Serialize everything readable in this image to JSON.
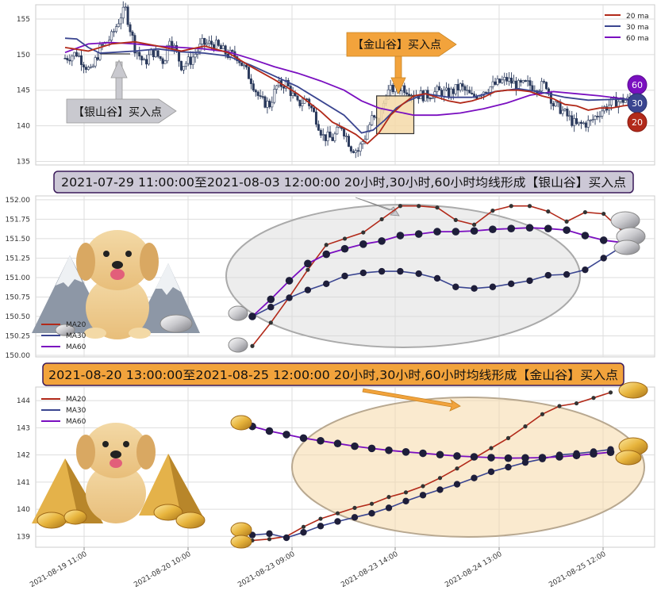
{
  "colors": {
    "ma20": "#b22a1a",
    "ma30": "#3a4590",
    "ma60": "#7a0fc0",
    "candle": "#2b3a5c",
    "silver_box": "#c9c9cf",
    "gold_box": "#f2a33c",
    "gold_fill": "#f5d9a8"
  },
  "chart_data": [
    {
      "type": "line",
      "name": "overview",
      "ylim": [
        134.5,
        157
      ],
      "yticks": [
        "135",
        "140",
        "145",
        "150",
        "155"
      ],
      "legend": [
        "20 ma",
        "30 ma",
        "60 ma"
      ],
      "badges": [
        "60",
        "30",
        "20"
      ],
      "annotations": {
        "silver": "【银山谷】买入点",
        "gold": "【金山谷】买入点"
      },
      "candle_anchors": [
        [
          0,
          149.5
        ],
        [
          10,
          150.2
        ],
        [
          22,
          147.5
        ],
        [
          30,
          150.8
        ],
        [
          40,
          152.5
        ],
        [
          48,
          155.5
        ],
        [
          52,
          156.3
        ],
        [
          60,
          151
        ],
        [
          68,
          148.7
        ],
        [
          75,
          150.5
        ],
        [
          85,
          149
        ],
        [
          90,
          152.5
        ],
        [
          100,
          148.5
        ],
        [
          108,
          149.2
        ],
        [
          118,
          151.5
        ],
        [
          128,
          151.5
        ],
        [
          140,
          150
        ],
        [
          148,
          149.8
        ],
        [
          160,
          146.5
        ],
        [
          168,
          143.5
        ],
        [
          176,
          143
        ],
        [
          182,
          145.5
        ],
        [
          190,
          146
        ],
        [
          200,
          143
        ],
        [
          208,
          143.8
        ],
        [
          216,
          141
        ],
        [
          222,
          138.5
        ],
        [
          230,
          138.2
        ],
        [
          238,
          140
        ],
        [
          246,
          137
        ],
        [
          252,
          136.5
        ],
        [
          258,
          138.5
        ],
        [
          264,
          141
        ],
        [
          270,
          140.5
        ],
        [
          276,
          144.5
        ],
        [
          282,
          145.2
        ],
        [
          290,
          145.5
        ],
        [
          300,
          144.5
        ],
        [
          310,
          144.2
        ],
        [
          320,
          144.8
        ],
        [
          330,
          144.5
        ],
        [
          340,
          145.5
        ],
        [
          350,
          144
        ],
        [
          360,
          145
        ],
        [
          370,
          145.8
        ],
        [
          380,
          146.5
        ],
        [
          390,
          145.6
        ],
        [
          398,
          145.8
        ],
        [
          406,
          145.4
        ],
        [
          414,
          145.8
        ],
        [
          420,
          143
        ],
        [
          426,
          142.4
        ],
        [
          434,
          141
        ],
        [
          440,
          140
        ],
        [
          446,
          140.3
        ],
        [
          452,
          140.5
        ],
        [
          460,
          142
        ],
        [
          470,
          143.2
        ],
        [
          480,
          143.6
        ],
        [
          490,
          143.6
        ]
      ],
      "ma20": [
        [
          0,
          151
        ],
        [
          20,
          150.5
        ],
        [
          40,
          151.5
        ],
        [
          60,
          151.8
        ],
        [
          80,
          151.2
        ],
        [
          100,
          150.5
        ],
        [
          120,
          151.2
        ],
        [
          140,
          150.3
        ],
        [
          160,
          148.3
        ],
        [
          180,
          146.5
        ],
        [
          200,
          144.5
        ],
        [
          220,
          142
        ],
        [
          230,
          140.5
        ],
        [
          240,
          139.7
        ],
        [
          250,
          138.8
        ],
        [
          260,
          137.5
        ],
        [
          270,
          139
        ],
        [
          280,
          141.5
        ],
        [
          290,
          143
        ],
        [
          300,
          144.2
        ],
        [
          310,
          144.5
        ],
        [
          320,
          144
        ],
        [
          330,
          143.5
        ],
        [
          340,
          143.2
        ],
        [
          350,
          143.5
        ],
        [
          360,
          144
        ],
        [
          370,
          144.8
        ],
        [
          380,
          145
        ],
        [
          390,
          145
        ],
        [
          400,
          144.8
        ],
        [
          410,
          144.2
        ],
        [
          420,
          143.8
        ],
        [
          430,
          143
        ],
        [
          440,
          142.8
        ],
        [
          450,
          142.2
        ],
        [
          460,
          142.5
        ],
        [
          470,
          142.5
        ],
        [
          480,
          142.8
        ],
        [
          490,
          143
        ]
      ],
      "ma30": [
        [
          0,
          152.3
        ],
        [
          10,
          152.2
        ],
        [
          20,
          151
        ],
        [
          30,
          150.2
        ],
        [
          40,
          150.3
        ],
        [
          60,
          150.5
        ],
        [
          80,
          150.8
        ],
        [
          100,
          150.4
        ],
        [
          120,
          150.2
        ],
        [
          140,
          149.8
        ],
        [
          160,
          148.5
        ],
        [
          180,
          147
        ],
        [
          200,
          145.5
        ],
        [
          220,
          143.5
        ],
        [
          240,
          141.5
        ],
        [
          255,
          139
        ],
        [
          265,
          139.4
        ],
        [
          275,
          140.8
        ],
        [
          285,
          142.5
        ],
        [
          295,
          143.5
        ],
        [
          310,
          144.5
        ],
        [
          330,
          144
        ],
        [
          350,
          144
        ],
        [
          370,
          144.8
        ],
        [
          390,
          145.2
        ],
        [
          410,
          144.7
        ],
        [
          430,
          144
        ],
        [
          450,
          143.6
        ],
        [
          470,
          143.7
        ],
        [
          490,
          143.8
        ]
      ],
      "ma60": [
        [
          0,
          150.3
        ],
        [
          20,
          151.5
        ],
        [
          40,
          151.7
        ],
        [
          60,
          151.5
        ],
        [
          80,
          151.2
        ],
        [
          100,
          151
        ],
        [
          120,
          150.8
        ],
        [
          140,
          150.4
        ],
        [
          160,
          149.4
        ],
        [
          180,
          148.3
        ],
        [
          200,
          147.4
        ],
        [
          220,
          146.3
        ],
        [
          240,
          145
        ],
        [
          255,
          143.5
        ],
        [
          270,
          142.5
        ],
        [
          285,
          142
        ],
        [
          300,
          141.5
        ],
        [
          320,
          141.5
        ],
        [
          340,
          141.8
        ],
        [
          360,
          142.4
        ],
        [
          380,
          143.2
        ],
        [
          400,
          144.3
        ],
        [
          420,
          144.8
        ],
        [
          440,
          144.5
        ],
        [
          460,
          144.2
        ],
        [
          480,
          143.8
        ],
        [
          490,
          143.6
        ]
      ],
      "silver_window": [
        30,
        56
      ],
      "gold_window": [
        268,
        300
      ]
    },
    {
      "type": "line",
      "name": "silver_valley",
      "title": "2021-07-29 11:00:00至2021-08-03 12:00:00 20小时,30小时,60小时均线形成【银山谷】买入点",
      "ylim": [
        149.98,
        152.05
      ],
      "yticks": [
        "150.00",
        "150.25",
        "150.50",
        "150.75",
        "151.00",
        "151.25",
        "151.50",
        "151.75",
        "152.00"
      ],
      "legend": [
        "MA20",
        "MA30",
        "MA60"
      ],
      "x": [
        0,
        1,
        2,
        3,
        4,
        5,
        6,
        7,
        8,
        9,
        10,
        11,
        12,
        13,
        14,
        15,
        16,
        17,
        18,
        19,
        20
      ],
      "ma20": [
        150.12,
        150.42,
        150.75,
        151.1,
        151.42,
        151.5,
        151.58,
        151.75,
        151.92,
        151.92,
        151.9,
        151.74,
        151.68,
        151.86,
        151.92,
        151.92,
        151.85,
        151.72,
        151.84,
        151.82,
        151.6
      ],
      "ma30": [
        150.5,
        150.62,
        150.74,
        150.84,
        150.92,
        151.02,
        151.06,
        151.08,
        151.08,
        151.05,
        150.99,
        150.88,
        150.86,
        150.88,
        150.92,
        150.96,
        151.03,
        151.04,
        151.1,
        151.25,
        151.4
      ],
      "ma60": [
        150.5,
        150.72,
        150.96,
        151.18,
        151.3,
        151.37,
        151.43,
        151.47,
        151.54,
        151.56,
        151.59,
        151.59,
        151.6,
        151.62,
        151.63,
        151.64,
        151.63,
        151.61,
        151.54,
        151.48,
        151.45
      ]
    },
    {
      "type": "line",
      "name": "gold_valley",
      "title": "2021-08-20 13:00:00至2021-08-25 12:00:00 20小时,30小时,60小时均线形成【金山谷】买入点",
      "ylim": [
        138.6,
        144.5
      ],
      "yticks": [
        "139",
        "140",
        "141",
        "142",
        "143",
        "144"
      ],
      "legend": [
        "MA20",
        "MA30",
        "MA60"
      ],
      "xticks": [
        "2021-08-19 11:00",
        "2021-08-20 10:00",
        "2021-08-23 09:00",
        "2021-08-23 14:00",
        "2021-08-24 13:00",
        "2021-08-25 12:00"
      ],
      "x": [
        0,
        1,
        2,
        3,
        4,
        5,
        6,
        7,
        8,
        9,
        10,
        11,
        12,
        13,
        14,
        15,
        16,
        17,
        18,
        19,
        20,
        21
      ],
      "ma20": [
        138.85,
        138.9,
        139.0,
        139.35,
        139.65,
        139.85,
        140.05,
        140.2,
        140.45,
        140.62,
        140.85,
        141.15,
        141.5,
        141.88,
        142.25,
        142.62,
        143.05,
        143.5,
        143.8,
        143.9,
        144.1,
        144.3
      ],
      "ma30": [
        139.05,
        139.1,
        138.95,
        139.15,
        139.38,
        139.55,
        139.7,
        139.85,
        140.05,
        140.3,
        140.52,
        140.72,
        140.92,
        141.15,
        141.38,
        141.55,
        141.72,
        141.85,
        142.0,
        142.05,
        142.12,
        142.2
      ],
      "ma60": [
        143.05,
        142.88,
        142.75,
        142.62,
        142.52,
        142.42,
        142.32,
        142.24,
        142.17,
        142.11,
        142.06,
        142.01,
        141.96,
        141.93,
        141.9,
        141.88,
        141.89,
        141.9,
        141.93,
        141.98,
        142.04,
        142.1
      ]
    }
  ]
}
